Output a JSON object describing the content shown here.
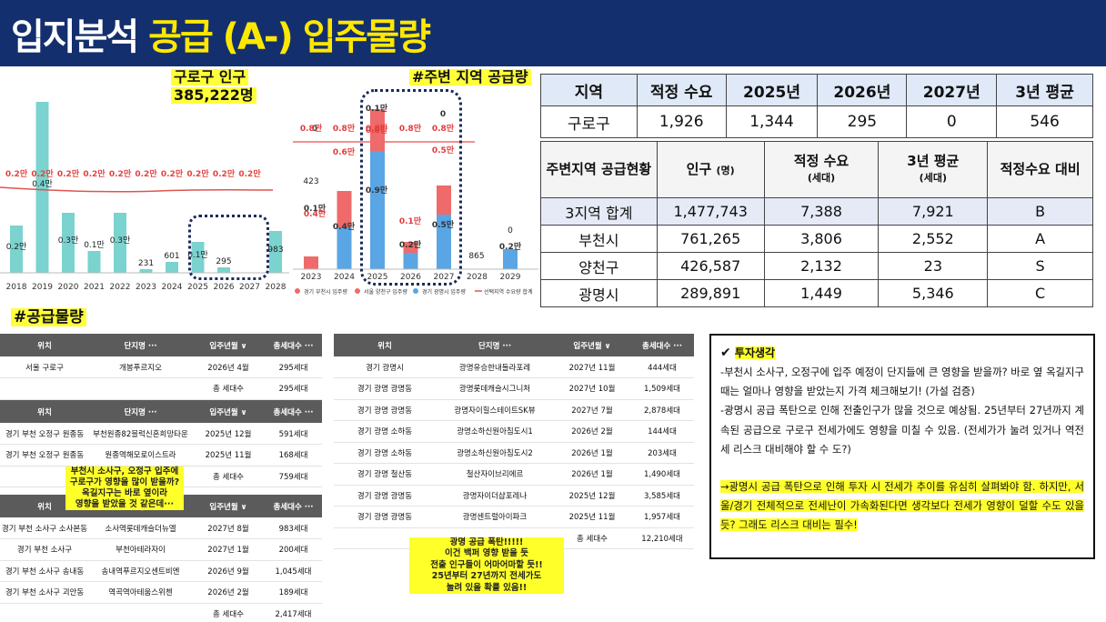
{
  "header": {
    "title_main": "입지분석",
    "title_highlight": "공급 (A-) 입주물량"
  },
  "chart1": {
    "label_line1": "구로구 인구",
    "label_line2": "385,222명",
    "chart_data": {
      "type": "bar",
      "categories": [
        "2018",
        "2019",
        "2020",
        "2021",
        "2022",
        "2023",
        "2024",
        "2025",
        "2026",
        "2027",
        "2028"
      ],
      "values": [
        0.2,
        0.4,
        0.3,
        0.1,
        0.3,
        231,
        601,
        0.1,
        295,
        0,
        983
      ],
      "bar_labels": [
        "0.2만",
        "0.4만",
        "0.3만",
        "0.1만",
        "0.3만",
        "231",
        "601",
        "0.1만",
        "295",
        "",
        "983"
      ],
      "demand_labels": [
        "0.2만",
        "0.2만",
        "0.2만",
        "0.2만",
        "0.2만",
        "0.2만",
        "0.2만",
        "0.2만",
        "0.2만",
        "0.2만"
      ]
    }
  },
  "chart2": {
    "label": "#주변 지역 공급량",
    "chart_data": {
      "type": "bar",
      "categories": [
        "2023",
        "2024",
        "2025",
        "2026",
        "2027",
        "2028",
        "2029"
      ],
      "series": [
        {
          "name": "서울 양천구 입주량",
          "labels": [
            "0.1만",
            "0",
            "0.1만",
            "",
            "0",
            "",
            ""
          ]
        },
        {
          "name": "경기 부천시 입주량",
          "labels": [
            "0.4만",
            "0.6만",
            "0.8만",
            "0.1만",
            "0.5만",
            "",
            ""
          ]
        },
        {
          "name": "경기 광명시 입주량",
          "labels": [
            "",
            "0.4만",
            "0.9만",
            "0.2만",
            "0.5만",
            "",
            "0.2만"
          ]
        },
        {
          "name": "선택지역 수요량 합계",
          "labels": [
            "0.8만",
            "0.8만",
            "0.8만",
            "0.8만",
            "0.8만",
            "",
            ""
          ]
        }
      ],
      "totals": [
        "423",
        "",
        "",
        "",
        "",
        "865",
        "0"
      ]
    }
  },
  "table1": {
    "headers": [
      "지역",
      "적정 수요",
      "2025년",
      "2026년",
      "2027년",
      "3년 평균"
    ],
    "row": [
      "구로구",
      "1,926",
      "1,344",
      "295",
      "0",
      "546"
    ]
  },
  "table2": {
    "headers": [
      {
        "main": "주변지역 공급현황",
        "sub": ""
      },
      {
        "main": "인구",
        "sub": "(명)"
      },
      {
        "main": "적정 수요",
        "sub": "(세대)"
      },
      {
        "main": "3년 평균",
        "sub": "(세대)"
      },
      {
        "main": "적정수요 대비",
        "sub": ""
      }
    ],
    "rows": [
      [
        "3지역 합계",
        "1,477,743",
        "7,388",
        "7,921",
        "B"
      ],
      [
        "부천시",
        "761,265",
        "3,806",
        "2,552",
        "A"
      ],
      [
        "양천구",
        "426,587",
        "2,132",
        "23",
        "S"
      ],
      [
        "광명시",
        "289,891",
        "1,449",
        "5,346",
        "C"
      ]
    ]
  },
  "supply_label": "#공급물량",
  "list_a": {
    "headers": [
      "위치",
      "단지명 ···",
      "입주년월 ∨",
      "총세대수 ···"
    ],
    "rows": [
      [
        "서울 구로구",
        "개봉푸르지오",
        "2026년 4월",
        "295세대"
      ]
    ],
    "total": {
      "label": "총 세대수",
      "value": "295세대"
    }
  },
  "list_b": {
    "headers": [
      "위치",
      "단지명 ···",
      "입주년월 ∨",
      "총세대수 ···"
    ],
    "rows": [
      [
        "경기 부천 오정구 원종동",
        "부천원종82블럭신혼희망타운",
        "2025년 12월",
        "591세대"
      ],
      [
        "경기 부천 오정구 원종동",
        "원종역해모로이스트라",
        "2025년 11월",
        "168세대"
      ]
    ],
    "total": {
      "label": "총 세대수",
      "value": "759세대"
    }
  },
  "list_c": {
    "headers": [
      "위치",
      "단지명 ···",
      "입주년월 ∨",
      "총세대수 ···"
    ],
    "rows": [
      [
        "경기 부천 소사구 소사본동",
        "소사역롯데캐슬더뉴엘",
        "2027년 8월",
        "983세대"
      ],
      [
        "경기 부천 소사구",
        "부천아테라자이",
        "2027년 1월",
        "200세대"
      ],
      [
        "경기 부천 소사구 송내동",
        "송내역푸르지오센트비엔",
        "2026년 9월",
        "1,045세대"
      ],
      [
        "경기 부천 소사구 괴안동",
        "역곡역아테움스위첸",
        "2026년 2월",
        "189세대"
      ]
    ],
    "total": {
      "label": "총 세대수",
      "value": "2,417세대"
    }
  },
  "note_bucheon": [
    "부천시 소사구, 오정구 입주에",
    "구로구가 영향을 많이 받을까?",
    "옥길지구는 바로 옆이라",
    "영향을 받았을 것 같은데···"
  ],
  "list_d": {
    "headers": [
      "위치",
      "단지명 ···",
      "입주년월 ∨",
      "총세대수 ···"
    ],
    "rows": [
      [
        "경기 광명시",
        "광명유승한내들라포레",
        "2027년 11월",
        "444세대"
      ],
      [
        "경기 광명 광명동",
        "광명롯데캐슬시그니처",
        "2027년 10월",
        "1,509세대"
      ],
      [
        "경기 광명 광명동",
        "광명자이힐스테이트SK뷰",
        "2027년 7월",
        "2,878세대"
      ],
      [
        "경기 광명 소하동",
        "광명소하신원아침도시1",
        "2026년 2월",
        "144세대"
      ],
      [
        "경기 광명 소하동",
        "광명소하신원아침도시2",
        "2026년 1월",
        "203세대"
      ],
      [
        "경기 광명 철산동",
        "철산자이브리에르",
        "2026년 1월",
        "1,490세대"
      ],
      [
        "경기 광명 광명동",
        "광명자이더샵포레나",
        "2025년 12월",
        "3,585세대"
      ],
      [
        "경기 광명 광명동",
        "광명센트럴아이파크",
        "2025년 11월",
        "1,957세대"
      ]
    ],
    "total": {
      "label": "총 세대수",
      "value": "12,210세대"
    }
  },
  "note_gwangmyeong": [
    "광명 공급 폭탄!!!!!",
    "이건 백퍼 영향 받을 듯",
    "전출 인구들이 어마어마할 듯!!",
    "25년부터 27년까지 전세가도",
    "눌려 있을 확률 있음!!"
  ],
  "memo": {
    "title": "투자생각",
    "check_icon": "check-icon",
    "p1": "-부천시 소사구, 오정구에 입주 예정이 단지들에 큰 영향을 받을까? 바로 옆 옥길지구 때는 얼마나 영향을 받았는지 가격 체크해보기! (가설 검증)",
    "p2": "-광명시 공급 폭탄으로 인해 전출인구가 많을 것으로 예상됨. 25년부터 27년까지 계속된 공급으로 구로구 전세가에도 영향을 미칠 수 있음. (전세가가 눌려 있거나 역전세 리스크 대비해야 할 수 도?)",
    "p3": "→광명시 공급 폭탄으로 인해 투자 시 전세가 추이를 유심히 살펴봐야 함. 하지만, 서울/경기 전체적으로 전세난이 가속화된다면 생각보다 전세가 영향이 덜할 수도 있을 듯? 그래도 리스크 대비는 필수!"
  }
}
